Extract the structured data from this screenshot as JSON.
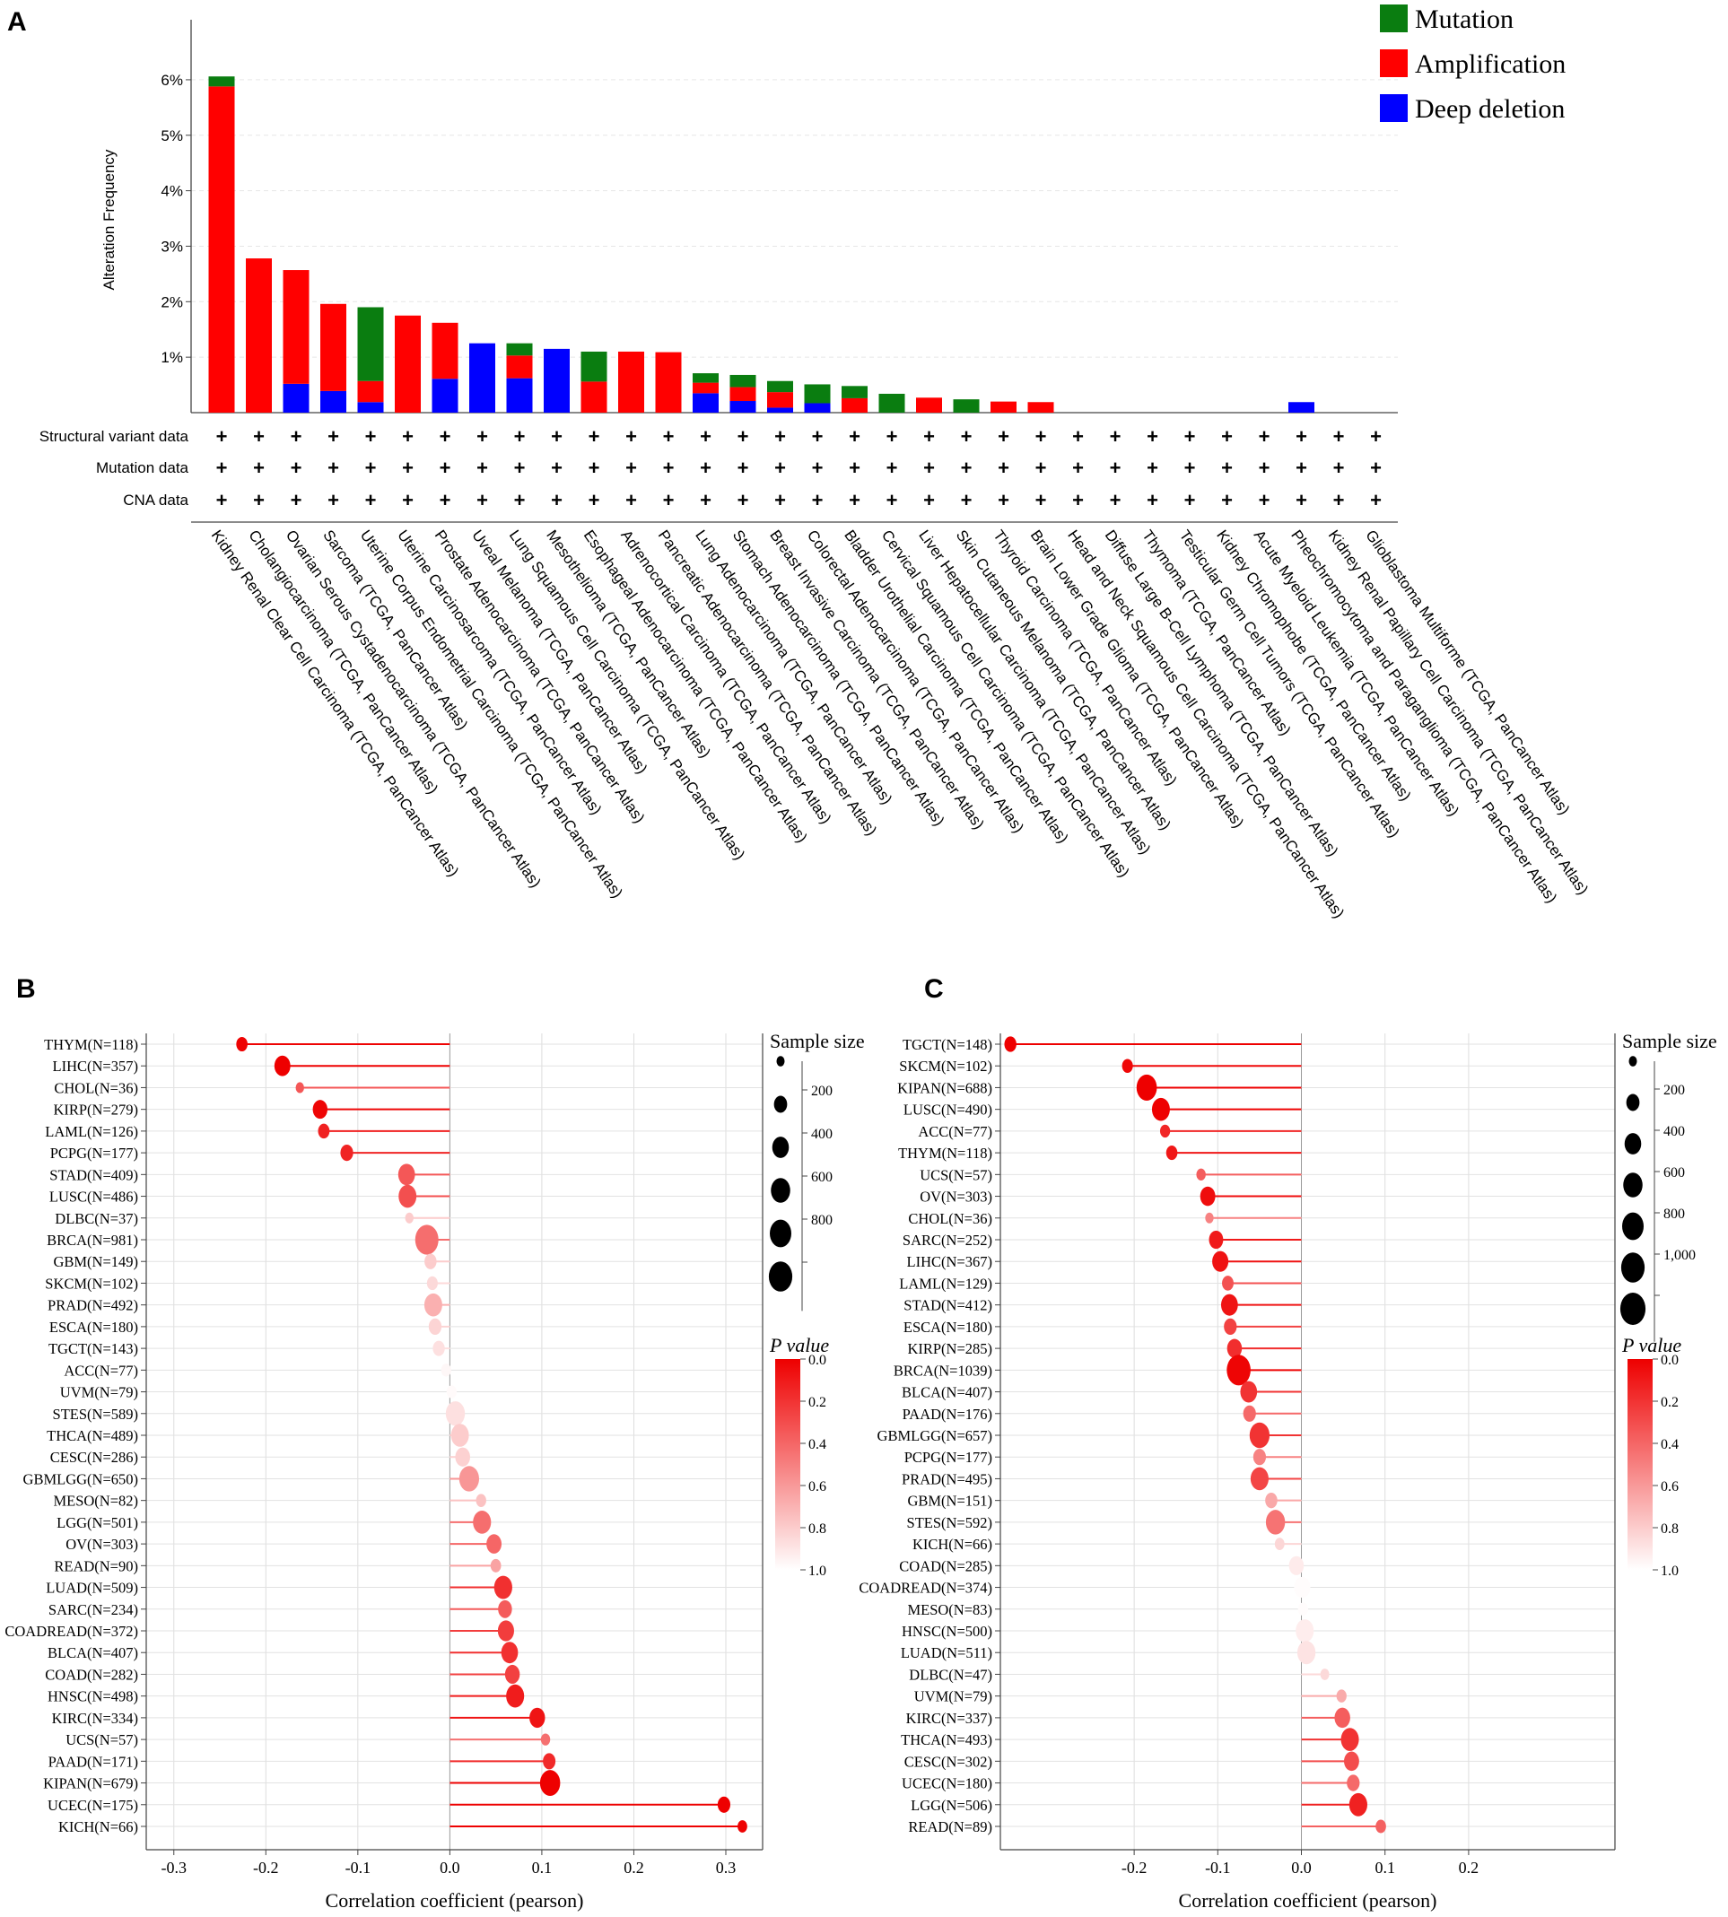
{
  "panel_labels": {
    "a": "A",
    "b": "B",
    "c": "C"
  },
  "colors": {
    "mutation": "#0a7d10",
    "amplification": "#ff0000",
    "deep_deletion": "#0000ff"
  },
  "chart_data": [
    {
      "panel": "A",
      "type": "bar",
      "ylabel": "Alteration Frequency",
      "yticks": [
        "1%",
        "2%",
        "3%",
        "4%",
        "5%",
        "6%"
      ],
      "ylim": [
        0,
        6.5
      ],
      "legend": [
        "Mutation",
        "Amplification",
        "Deep deletion"
      ],
      "legend_position": "top-right",
      "row_labels": [
        "Structural variant data",
        "Mutation data",
        "CNA data"
      ],
      "row_marker": "+",
      "categories": [
        "Kidney Renal Clear Cell Carcinoma (TCGA, PanCancer Atlas)",
        "Cholangiocarcinoma (TCGA, PanCancer Atlas)",
        "Ovarian Serous Cystadenocarcinoma (TCGA, PanCancer Atlas)",
        "Sarcoma (TCGA, PanCancer Atlas)",
        "Uterine Corpus Endometrial Carcinoma (TCGA, PanCancer Atlas)",
        "Uterine Carcinosarcoma (TCGA, PanCancer Atlas)",
        "Prostate Adenocarcinoma (TCGA, PanCancer Atlas)",
        "Uveal Melanoma (TCGA, PanCancer Atlas)",
        "Lung Squamous Cell Carcinoma (TCGA, PanCancer Atlas)",
        "Mesothelioma (TCGA, PanCancer Atlas)",
        "Esophageal Adenocarcinoma (TCGA, PanCancer Atlas)",
        "Adrenocortical Carcinoma (TCGA, PanCancer Atlas)",
        "Pancreatic Adenocarcinoma (TCGA, PanCancer Atlas)",
        "Lung Adenocarcinoma (TCGA, PanCancer Atlas)",
        "Stomach Adenocarcinoma (TCGA, PanCancer Atlas)",
        "Breast Invasive Carcinoma (TCGA, PanCancer Atlas)",
        "Colorectal Adenocarcinoma (TCGA, PanCancer Atlas)",
        "Bladder Urothelial Carcinoma (TCGA, PanCancer Atlas)",
        "Cervical Squamous Cell Carcinoma (TCGA, PanCancer Atlas)",
        "Liver Hepatocellular Carcinoma (TCGA, PanCancer Atlas)",
        "Skin Cutaneous Melanoma (TCGA, PanCancer Atlas)",
        "Thyroid Carcinoma (TCGA, PanCancer Atlas)",
        "Brain Lower Grade Glioma (TCGA, PanCancer Atlas)",
        "Head and Neck Squamous Cell Carcinoma (TCGA, PanCancer Atlas)",
        "Diffuse Large B-Cell Lymphoma (TCGA, PanCancer Atlas)",
        "Thymoma (TCGA, PanCancer Atlas)",
        "Testicular Germ Cell Tumors (TCGA, PanCancer Atlas)",
        "Kidney Chromophobe (TCGA, PanCancer Atlas)",
        "Acute Myeloid Leukemia (TCGA, PanCancer Atlas)",
        "Pheochromocytoma and Paraganglioma (TCGA, PanCancer Atlas)",
        "Kidney Renal Papillary Cell Carcinoma (TCGA, PanCancer Atlas)",
        "Glioblastoma Multiforme (TCGA, PanCancer Atlas)"
      ],
      "series": [
        {
          "name": "Deep deletion",
          "values": [
            0,
            0,
            0.52,
            0.39,
            0.19,
            0,
            0.61,
            1.25,
            0.62,
            1.15,
            0,
            0,
            0,
            0.35,
            0.21,
            0.09,
            0.17,
            0,
            0,
            0,
            0,
            0,
            0,
            0,
            0,
            0,
            0,
            0,
            0,
            0.19,
            0,
            0
          ]
        },
        {
          "name": "Amplification",
          "values": [
            5.88,
            2.78,
            2.05,
            1.57,
            0.38,
            1.75,
            1.01,
            0,
            0.41,
            0,
            0.56,
            1.1,
            1.09,
            0.19,
            0.25,
            0.28,
            0,
            0.26,
            0,
            0.27,
            0,
            0.2,
            0.19,
            0,
            0,
            0,
            0,
            0,
            0,
            0,
            0,
            0
          ]
        },
        {
          "name": "Mutation",
          "values": [
            0.18,
            0,
            0,
            0,
            1.33,
            0,
            0,
            0,
            0.22,
            0,
            0.54,
            0,
            0,
            0.17,
            0.22,
            0.2,
            0.34,
            0.22,
            0.34,
            0,
            0.24,
            0,
            0,
            0,
            0,
            0,
            0,
            0,
            0,
            0,
            0,
            0
          ]
        }
      ]
    },
    {
      "panel": "B",
      "type": "scatter",
      "xlabel": "Correlation coefficient (pearson)",
      "xticks": [
        "-0.3",
        "-0.2",
        "-0.1",
        "0.0",
        "0.1",
        "0.2",
        "0.3"
      ],
      "xlim": [
        -0.33,
        0.34
      ],
      "size_legend_title": "Sample size",
      "size_legend": [
        "200",
        "400",
        "600",
        "800"
      ],
      "p_legend_title": "P value",
      "p_legend": [
        "0.0",
        "0.2",
        "0.4",
        "0.6",
        "0.8",
        "1.0"
      ],
      "points": [
        {
          "label": "THYM(N=118)",
          "x": -0.226,
          "n": 118,
          "p": 0.01
        },
        {
          "label": "LIHC(N=357)",
          "x": -0.182,
          "n": 357,
          "p": 0.001
        },
        {
          "label": "CHOL(N=36)",
          "x": -0.163,
          "n": 36,
          "p": 0.34
        },
        {
          "label": "KIRP(N=279)",
          "x": -0.141,
          "n": 279,
          "p": 0.02
        },
        {
          "label": "LAML(N=126)",
          "x": -0.137,
          "n": 126,
          "p": 0.13
        },
        {
          "label": "PCPG(N=177)",
          "x": -0.112,
          "n": 177,
          "p": 0.14
        },
        {
          "label": "STAD(N=409)",
          "x": -0.047,
          "n": 409,
          "p": 0.34
        },
        {
          "label": "LUSC(N=486)",
          "x": -0.046,
          "n": 486,
          "p": 0.31
        },
        {
          "label": "DLBC(N=37)",
          "x": -0.044,
          "n": 37,
          "p": 0.8
        },
        {
          "label": "BRCA(N=981)",
          "x": -0.025,
          "n": 981,
          "p": 0.43
        },
        {
          "label": "GBM(N=149)",
          "x": -0.021,
          "n": 149,
          "p": 0.8
        },
        {
          "label": "SKCM(N=102)",
          "x": -0.019,
          "n": 102,
          "p": 0.85
        },
        {
          "label": "PRAD(N=492)",
          "x": -0.018,
          "n": 492,
          "p": 0.69
        },
        {
          "label": "ESCA(N=180)",
          "x": -0.016,
          "n": 180,
          "p": 0.83
        },
        {
          "label": "TGCT(N=143)",
          "x": -0.012,
          "n": 143,
          "p": 0.88
        },
        {
          "label": "ACC(N=77)",
          "x": -0.004,
          "n": 77,
          "p": 0.97
        },
        {
          "label": "UVM(N=79)",
          "x": 0.002,
          "n": 79,
          "p": 0.98
        },
        {
          "label": "STES(N=589)",
          "x": 0.006,
          "n": 589,
          "p": 0.88
        },
        {
          "label": "THCA(N=489)",
          "x": 0.011,
          "n": 489,
          "p": 0.8
        },
        {
          "label": "CESC(N=286)",
          "x": 0.014,
          "n": 286,
          "p": 0.82
        },
        {
          "label": "GBMLGG(N=650)",
          "x": 0.021,
          "n": 650,
          "p": 0.59
        },
        {
          "label": "MESO(N=82)",
          "x": 0.034,
          "n": 82,
          "p": 0.76
        },
        {
          "label": "LGG(N=501)",
          "x": 0.035,
          "n": 501,
          "p": 0.43
        },
        {
          "label": "OV(N=303)",
          "x": 0.048,
          "n": 303,
          "p": 0.4
        },
        {
          "label": "READ(N=90)",
          "x": 0.05,
          "n": 90,
          "p": 0.64
        },
        {
          "label": "LUAD(N=509)",
          "x": 0.058,
          "n": 509,
          "p": 0.19
        },
        {
          "label": "SARC(N=234)",
          "x": 0.06,
          "n": 234,
          "p": 0.36
        },
        {
          "label": "COADREAD(N=372)",
          "x": 0.061,
          "n": 372,
          "p": 0.24
        },
        {
          "label": "BLCA(N=407)",
          "x": 0.065,
          "n": 407,
          "p": 0.19
        },
        {
          "label": "COAD(N=282)",
          "x": 0.068,
          "n": 282,
          "p": 0.25
        },
        {
          "label": "HNSC(N=498)",
          "x": 0.071,
          "n": 498,
          "p": 0.11
        },
        {
          "label": "KIRC(N=334)",
          "x": 0.095,
          "n": 334,
          "p": 0.08
        },
        {
          "label": "UCS(N=57)",
          "x": 0.104,
          "n": 57,
          "p": 0.44
        },
        {
          "label": "PAAD(N=171)",
          "x": 0.108,
          "n": 171,
          "p": 0.16
        },
        {
          "label": "KIPAN(N=679)",
          "x": 0.109,
          "n": 679,
          "p": 0.004
        },
        {
          "label": "UCEC(N=175)",
          "x": 0.298,
          "n": 175,
          "p": 0.0001
        },
        {
          "label": "KICH(N=66)",
          "x": 0.318,
          "n": 66,
          "p": 0.009
        }
      ]
    },
    {
      "panel": "C",
      "type": "scatter",
      "xlabel": "Correlation coefficient (pearson)",
      "xticks": [
        "-0.2",
        "-0.1",
        "0.0",
        "0.1",
        "0.2"
      ],
      "xlim": [
        -0.36,
        0.375
      ],
      "size_legend_title": "Sample size",
      "size_legend": [
        "200",
        "400",
        "600",
        "800",
        "1,000"
      ],
      "p_legend_title": "P value",
      "p_legend": [
        "0.0",
        "0.2",
        "0.4",
        "0.6",
        "0.8",
        "1.0"
      ],
      "points": [
        {
          "label": "TGCT(N=148)",
          "x": -0.348,
          "n": 148,
          "p": 0.0001
        },
        {
          "label": "SKCM(N=102)",
          "x": -0.208,
          "n": 102,
          "p": 0.03
        },
        {
          "label": "KIPAN(N=688)",
          "x": -0.185,
          "n": 688,
          "p": 0.0001
        },
        {
          "label": "LUSC(N=490)",
          "x": -0.168,
          "n": 490,
          "p": 0.002
        },
        {
          "label": "ACC(N=77)",
          "x": -0.163,
          "n": 77,
          "p": 0.15
        },
        {
          "label": "THYM(N=118)",
          "x": -0.155,
          "n": 118,
          "p": 0.09
        },
        {
          "label": "UCS(N=57)",
          "x": -0.12,
          "n": 57,
          "p": 0.37
        },
        {
          "label": "OV(N=303)",
          "x": -0.112,
          "n": 303,
          "p": 0.05
        },
        {
          "label": "CHOL(N=36)",
          "x": -0.11,
          "n": 36,
          "p": 0.51
        },
        {
          "label": "SARC(N=252)",
          "x": -0.102,
          "n": 252,
          "p": 0.1
        },
        {
          "label": "LIHC(N=367)",
          "x": -0.097,
          "n": 367,
          "p": 0.07
        },
        {
          "label": "LAML(N=129)",
          "x": -0.088,
          "n": 129,
          "p": 0.32
        },
        {
          "label": "STAD(N=412)",
          "x": -0.086,
          "n": 412,
          "p": 0.08
        },
        {
          "label": "ESCA(N=180)",
          "x": -0.085,
          "n": 180,
          "p": 0.26
        },
        {
          "label": "KIRP(N=285)",
          "x": -0.08,
          "n": 285,
          "p": 0.18
        },
        {
          "label": "BRCA(N=1039)",
          "x": -0.075,
          "n": 1039,
          "p": 0.02
        },
        {
          "label": "BLCA(N=407)",
          "x": -0.063,
          "n": 407,
          "p": 0.2
        },
        {
          "label": "PAAD(N=176)",
          "x": -0.062,
          "n": 176,
          "p": 0.41
        },
        {
          "label": "GBMLGG(N=657)",
          "x": -0.05,
          "n": 657,
          "p": 0.2
        },
        {
          "label": "PCPG(N=177)",
          "x": -0.05,
          "n": 177,
          "p": 0.51
        },
        {
          "label": "PRAD(N=495)",
          "x": -0.05,
          "n": 495,
          "p": 0.27
        },
        {
          "label": "GBM(N=151)",
          "x": -0.036,
          "n": 151,
          "p": 0.66
        },
        {
          "label": "STES(N=592)",
          "x": -0.031,
          "n": 592,
          "p": 0.45
        },
        {
          "label": "KICH(N=66)",
          "x": -0.026,
          "n": 66,
          "p": 0.84
        },
        {
          "label": "COAD(N=285)",
          "x": -0.006,
          "n": 285,
          "p": 0.92
        },
        {
          "label": "COADREAD(N=374)",
          "x": 0.001,
          "n": 374,
          "p": 0.99
        },
        {
          "label": "MESO(N=83)",
          "x": 0.002,
          "n": 83,
          "p": 0.99
        },
        {
          "label": "HNSC(N=500)",
          "x": 0.004,
          "n": 500,
          "p": 0.93
        },
        {
          "label": "LUAD(N=511)",
          "x": 0.006,
          "n": 511,
          "p": 0.89
        },
        {
          "label": "DLBC(N=47)",
          "x": 0.028,
          "n": 47,
          "p": 0.85
        },
        {
          "label": "UVM(N=79)",
          "x": 0.048,
          "n": 79,
          "p": 0.67
        },
        {
          "label": "KIRC(N=337)",
          "x": 0.049,
          "n": 337,
          "p": 0.37
        },
        {
          "label": "THCA(N=493)",
          "x": 0.058,
          "n": 493,
          "p": 0.2
        },
        {
          "label": "CESC(N=302)",
          "x": 0.06,
          "n": 302,
          "p": 0.3
        },
        {
          "label": "UCEC(N=180)",
          "x": 0.062,
          "n": 180,
          "p": 0.41
        },
        {
          "label": "LGG(N=506)",
          "x": 0.068,
          "n": 506,
          "p": 0.13
        },
        {
          "label": "READ(N=89)",
          "x": 0.095,
          "n": 89,
          "p": 0.38
        }
      ]
    }
  ]
}
